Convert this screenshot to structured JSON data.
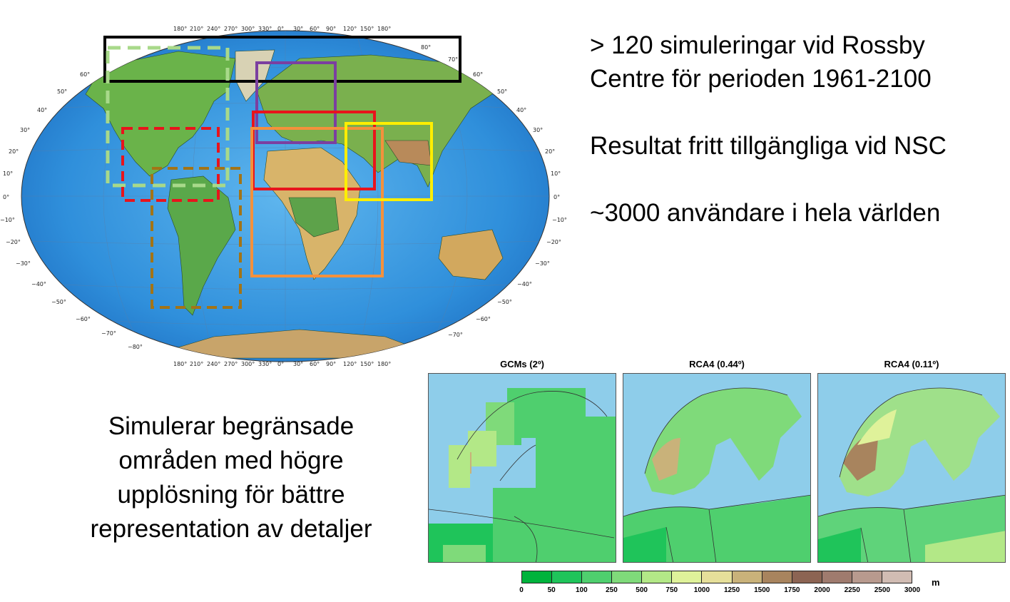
{
  "world_map": {
    "lon_ticks": [
      "180°",
      "210°",
      "240°",
      "270°",
      "300°",
      "330°",
      "0°",
      "30°",
      "60°",
      "90°",
      "120°",
      "150°",
      "180°"
    ],
    "lat_ticks_left": [
      "60°",
      "50°",
      "40°",
      "30°",
      "20°",
      "10°",
      "0°",
      "−10°",
      "−20°",
      "−30°",
      "−40°",
      "−50°",
      "−60°",
      "−70°",
      "−80°"
    ],
    "lat_ticks_right": [
      "80°",
      "70°",
      "60°",
      "50°",
      "40°",
      "30°",
      "20°",
      "10°",
      "0°",
      "−10°",
      "−20°",
      "−30°",
      "−40°",
      "−50°",
      "−60°",
      "−70°"
    ],
    "domain_colors": {
      "arctic": "#000000",
      "europe_purple": "#7b3fa0",
      "euro_med_red": "#e8141c",
      "africa_orange": "#f4913c",
      "south_asia_yellow": "#ffee00",
      "north_america_lightgreen": "#a8d98a",
      "central_america_red_dashed": "#e8141c",
      "south_america_brown_dashed": "#a37416"
    }
  },
  "bullets": [
    "> 120 simuleringar vid Rossby",
    "Centre för perioden 1961-2100",
    "Resultat fritt tillgängliga vid NSC",
    "~3000 användare i hela världen"
  ],
  "description": [
    "Simulerar begränsade",
    "områden med högre",
    "upplösning för bättre",
    "representation av detaljer"
  ],
  "panels": [
    {
      "title": "GCMs (2º)"
    },
    {
      "title": "RCA4 (0.44º)"
    },
    {
      "title": "RCA4 (0.11º)"
    }
  ],
  "colorbar": {
    "unit": "m",
    "ticks": [
      "0",
      "50",
      "100",
      "250",
      "500",
      "750",
      "1000",
      "1250",
      "1500",
      "1750",
      "2000",
      "2250",
      "2500",
      "3000"
    ],
    "colors": [
      "#00b33c",
      "#1fc45a",
      "#4fcf6e",
      "#7fda7a",
      "#b3e887",
      "#dff29a",
      "#e6df9a",
      "#c9b27a",
      "#a8845e",
      "#8c6453",
      "#9f7b6e",
      "#b89a8e",
      "#d1bcb3"
    ]
  }
}
